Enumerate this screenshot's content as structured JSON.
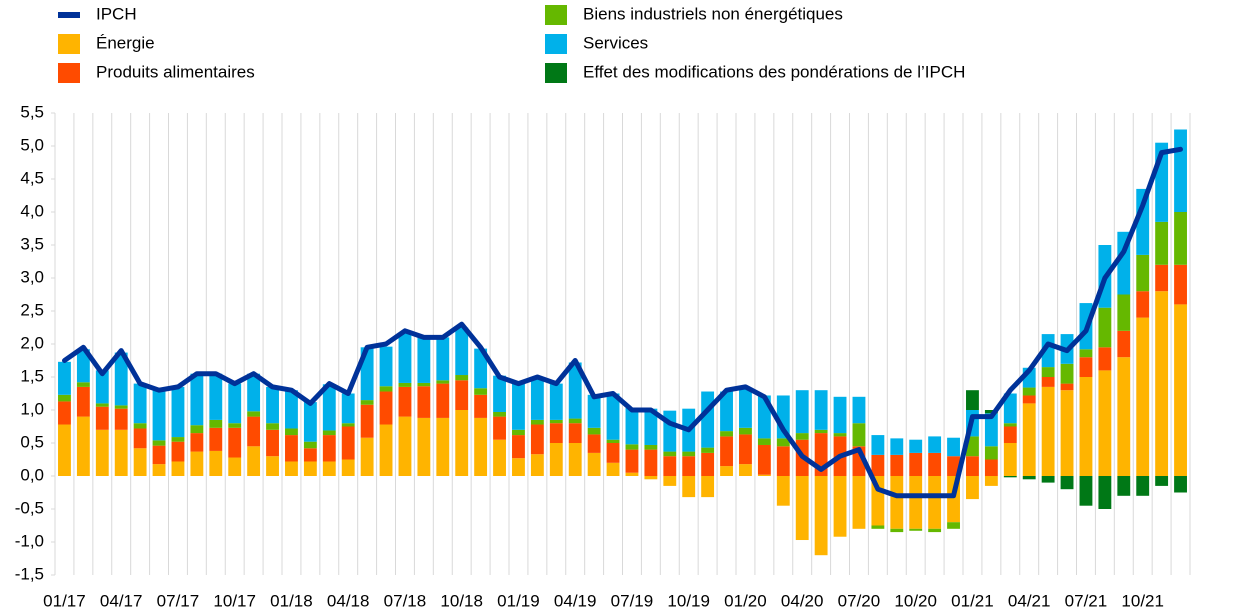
{
  "chart_data": {
    "type": "bar",
    "stacked": true,
    "categories": [
      "01/17",
      null,
      null,
      "04/17",
      null,
      null,
      "07/17",
      null,
      null,
      "10/17",
      null,
      null,
      "01/18",
      null,
      null,
      "04/18",
      null,
      null,
      "07/18",
      null,
      null,
      "10/18",
      null,
      null,
      "01/19",
      null,
      null,
      "04/19",
      null,
      null,
      "07/19",
      null,
      null,
      "10/19",
      null,
      null,
      "01/20",
      null,
      null,
      "04/20",
      null,
      null,
      "07/20",
      null,
      null,
      "10/20",
      null,
      null,
      "01/21",
      null,
      null,
      "04/21",
      null,
      null,
      "07/21",
      null,
      null,
      "10/21",
      null,
      null
    ],
    "ylim": [
      -1.5,
      5.5
    ],
    "yticks": [
      {
        "value": -1.5,
        "label": "-1,5"
      },
      {
        "value": -1,
        "label": "-1,0"
      },
      {
        "value": -0.5,
        "label": "-0,5"
      },
      {
        "value": 0,
        "label": "0,0"
      },
      {
        "value": 0.5,
        "label": "0,5"
      },
      {
        "value": 1,
        "label": "1,0"
      },
      {
        "value": 1.5,
        "label": "1,5"
      },
      {
        "value": 2,
        "label": "2,0"
      },
      {
        "value": 2.5,
        "label": "2,5"
      },
      {
        "value": 3,
        "label": "3,0"
      },
      {
        "value": 3.5,
        "label": "3,5"
      },
      {
        "value": 4,
        "label": "4,0"
      },
      {
        "value": 4.5,
        "label": "4,5"
      },
      {
        "value": 5,
        "label": "5,0"
      },
      {
        "value": 5.5,
        "label": "5,5"
      }
    ],
    "xgrid": true,
    "series": [
      {
        "name": "IPCH",
        "type": "line",
        "color": "#003299",
        "values": [
          1.75,
          1.95,
          1.55,
          1.9,
          1.4,
          1.3,
          1.35,
          1.55,
          1.55,
          1.4,
          1.55,
          1.35,
          1.3,
          1.1,
          1.4,
          1.25,
          1.95,
          2.0,
          2.2,
          2.1,
          2.1,
          2.3,
          1.95,
          1.5,
          1.4,
          1.5,
          1.4,
          1.75,
          1.2,
          1.25,
          1.0,
          1.0,
          0.8,
          0.7,
          1.0,
          1.3,
          1.35,
          1.2,
          0.7,
          0.3,
          0.1,
          0.3,
          0.4,
          -0.2,
          -0.3,
          -0.3,
          -0.3,
          -0.3,
          0.9,
          0.9,
          1.3,
          1.6,
          2.0,
          1.9,
          2.2,
          3.0,
          3.4,
          4.1,
          4.9,
          4.95
        ]
      },
      {
        "name": "Énergie",
        "color": "#ffb400",
        "values": [
          0.78,
          0.9,
          0.7,
          0.7,
          0.42,
          0.18,
          0.22,
          0.37,
          0.38,
          0.28,
          0.45,
          0.3,
          0.22,
          0.22,
          0.22,
          0.25,
          0.58,
          0.78,
          0.9,
          0.88,
          0.88,
          1.0,
          0.88,
          0.55,
          0.27,
          0.33,
          0.5,
          0.5,
          0.35,
          0.2,
          0.05,
          -0.05,
          -0.15,
          -0.32,
          -0.32,
          0.15,
          0.18,
          0.02,
          -0.45,
          -0.97,
          -1.2,
          -0.92,
          -0.8,
          -0.75,
          -0.8,
          -0.8,
          -0.8,
          -0.7,
          -0.35,
          -0.15,
          0.5,
          1.1,
          1.35,
          1.3,
          1.5,
          1.6,
          1.8,
          2.4,
          2.8,
          2.6
        ]
      },
      {
        "name": "Produits alimentaires",
        "color": "#ff4b00",
        "values": [
          0.35,
          0.45,
          0.35,
          0.32,
          0.3,
          0.28,
          0.3,
          0.28,
          0.35,
          0.45,
          0.45,
          0.4,
          0.4,
          0.2,
          0.4,
          0.5,
          0.5,
          0.5,
          0.45,
          0.48,
          0.52,
          0.45,
          0.35,
          0.35,
          0.35,
          0.45,
          0.3,
          0.3,
          0.28,
          0.3,
          0.35,
          0.4,
          0.3,
          0.3,
          0.35,
          0.45,
          0.45,
          0.45,
          0.45,
          0.55,
          0.65,
          0.6,
          0.45,
          0.32,
          0.32,
          0.35,
          0.35,
          0.3,
          0.3,
          0.25,
          0.25,
          0.12,
          0.15,
          0.1,
          0.3,
          0.35,
          0.4,
          0.4,
          0.4,
          0.6
        ]
      },
      {
        "name": "Biens industriels non énergétiques",
        "color": "#65b800",
        "values": [
          0.1,
          0.07,
          0.05,
          0.05,
          0.08,
          0.08,
          0.07,
          0.12,
          0.12,
          0.07,
          0.08,
          0.1,
          0.1,
          0.1,
          0.07,
          0.05,
          0.07,
          0.08,
          0.06,
          0.05,
          0.05,
          0.08,
          0.1,
          0.07,
          0.08,
          0.07,
          0.05,
          0.07,
          0.1,
          0.05,
          0.08,
          0.07,
          0.07,
          0.07,
          0.08,
          0.08,
          0.1,
          0.1,
          0.12,
          0.1,
          0.05,
          0.05,
          0.35,
          -0.05,
          -0.05,
          -0.03,
          -0.05,
          -0.1,
          0.3,
          0.2,
          0.05,
          0.12,
          0.15,
          0.3,
          0.12,
          0.6,
          0.55,
          0.55,
          0.65,
          0.8
        ]
      },
      {
        "name": "Services",
        "color": "#00b1ea",
        "values": [
          0.5,
          0.5,
          0.5,
          0.8,
          0.6,
          0.76,
          0.76,
          0.78,
          0.7,
          0.6,
          0.57,
          0.55,
          0.58,
          0.6,
          0.7,
          0.45,
          0.8,
          0.6,
          0.75,
          0.7,
          0.65,
          0.72,
          0.6,
          0.55,
          0.7,
          0.65,
          0.55,
          0.85,
          0.5,
          0.7,
          0.55,
          0.55,
          0.62,
          0.65,
          0.85,
          0.6,
          0.6,
          0.65,
          0.65,
          0.65,
          0.6,
          0.55,
          0.4,
          0.3,
          0.25,
          0.2,
          0.25,
          0.28,
          0.4,
          0.5,
          0.45,
          0.3,
          0.5,
          0.45,
          0.7,
          0.95,
          0.95,
          1.0,
          1.2,
          1.25
        ]
      },
      {
        "name": "Effet des modifications des pondérations de l’IPCH",
        "color": "#007816",
        "values": [
          null,
          null,
          null,
          null,
          null,
          null,
          null,
          null,
          null,
          null,
          null,
          null,
          null,
          null,
          null,
          null,
          null,
          null,
          null,
          null,
          null,
          null,
          null,
          null,
          null,
          null,
          null,
          null,
          null,
          null,
          null,
          null,
          null,
          null,
          null,
          null,
          null,
          null,
          null,
          null,
          null,
          null,
          null,
          null,
          null,
          null,
          null,
          null,
          0.3,
          0.05,
          -0.02,
          -0.05,
          -0.1,
          -0.2,
          -0.45,
          -0.5,
          -0.3,
          -0.3,
          -0.15,
          -0.25
        ]
      }
    ]
  }
}
